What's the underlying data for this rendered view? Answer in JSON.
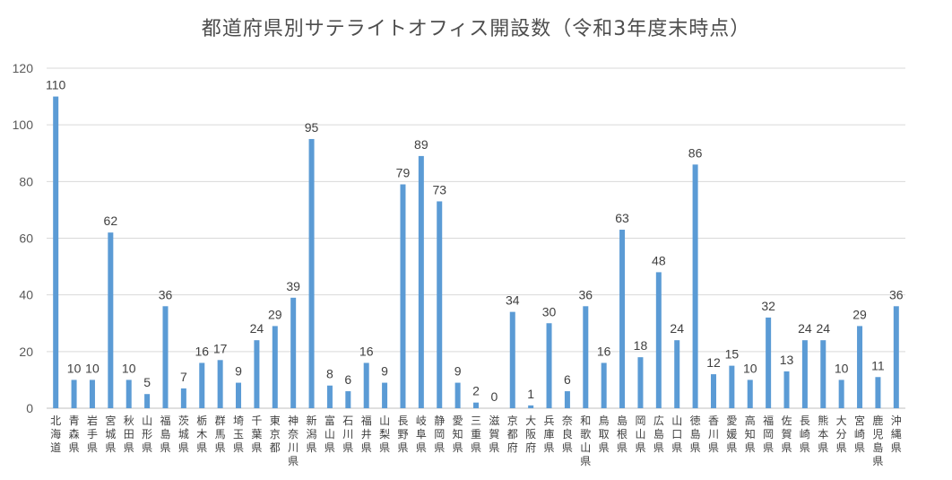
{
  "chart_data": {
    "type": "bar",
    "title": "都道府県別サテライトオフィス開設数（令和3年度末時点）",
    "xlabel": "",
    "ylabel": "",
    "ylim": [
      0,
      120
    ],
    "yticks": [
      0,
      20,
      40,
      60,
      80,
      100,
      120
    ],
    "grid": true,
    "legend": "none",
    "bar_color": "#5b9bd5",
    "categories": [
      "北海道",
      "青森県",
      "岩手県",
      "宮城県",
      "秋田県",
      "山形県",
      "福島県",
      "茨城県",
      "栃木県",
      "群馬県",
      "埼玉県",
      "千葉県",
      "東京都",
      "神奈川県",
      "新潟県",
      "富山県",
      "石川県",
      "福井県",
      "山梨県",
      "長野県",
      "岐阜県",
      "静岡県",
      "愛知県",
      "三重県",
      "滋賀県",
      "京都府",
      "大阪府",
      "兵庫県",
      "奈良県",
      "和歌山県",
      "鳥取県",
      "島根県",
      "岡山県",
      "広島県",
      "山口県",
      "徳島県",
      "香川県",
      "愛媛県",
      "高知県",
      "福岡県",
      "佐賀県",
      "長崎県",
      "熊本県",
      "大分県",
      "宮崎県",
      "鹿児島県",
      "沖縄県"
    ],
    "values": [
      110,
      10,
      10,
      62,
      10,
      5,
      36,
      7,
      16,
      17,
      9,
      24,
      29,
      39,
      95,
      8,
      6,
      16,
      9,
      79,
      89,
      73,
      9,
      2,
      0,
      34,
      1,
      30,
      6,
      36,
      16,
      63,
      18,
      48,
      24,
      86,
      12,
      15,
      10,
      32,
      13,
      24,
      24,
      10,
      29,
      11,
      36
    ]
  }
}
